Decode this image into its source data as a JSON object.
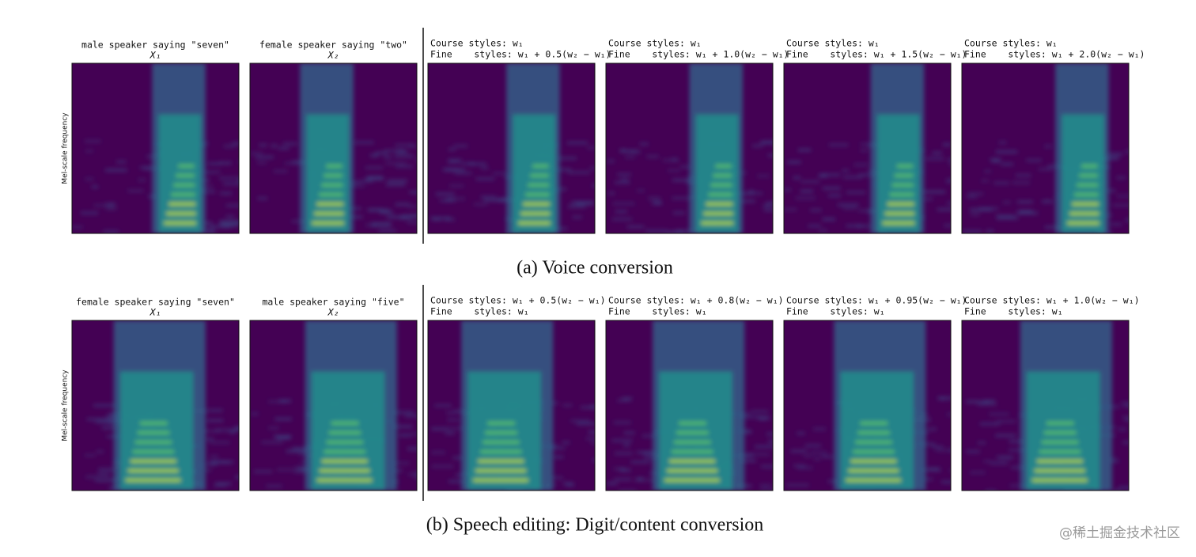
{
  "figure": {
    "rows": [
      {
        "ylabel": "Mel-scale frequency",
        "caption": "(a) Voice conversion",
        "panels": [
          {
            "title": [
              "male speaker saying \"seven\"",
              "X₁"
            ]
          },
          {
            "title": [
              "female speaker saying \"two\"",
              "X₂"
            ]
          },
          {
            "title": [
              "Course styles: w₁",
              "Fine    styles: w₁ + 0.5(w₂ − w₁)"
            ]
          },
          {
            "title": [
              "Course styles: w₁",
              "Fine    styles: w₁ + 1.0(w₂ − w₁)"
            ]
          },
          {
            "title": [
              "Course styles: w₁",
              "Fine    styles: w₁ + 1.5(w₂ − w₁)"
            ]
          },
          {
            "title": [
              "Course styles: w₁",
              "Fine    styles: w₁ + 2.0(w₂ − w₁)"
            ]
          }
        ]
      },
      {
        "ylabel": "Mel-scale frequency",
        "caption": "(b) Speech editing: Digit/content conversion",
        "panels": [
          {
            "title": [
              "female speaker saying \"seven\"",
              "X₁"
            ]
          },
          {
            "title": [
              "male speaker saying \"five\"",
              "X₂"
            ]
          },
          {
            "title": [
              "Course styles: w₁ + 0.5(w₂ − w₁)",
              "Fine    styles: w₁"
            ]
          },
          {
            "title": [
              "Course styles: w₁ + 0.8(w₂ − w₁)",
              "Fine    styles: w₁"
            ]
          },
          {
            "title": [
              "Course styles: w₁ + 0.95(w₂ − w₁)",
              "Fine    styles: w₁"
            ]
          },
          {
            "title": [
              "Course styles: w₁ + 1.0(w₂ − w₁)",
              "Fine    styles: w₁"
            ]
          }
        ]
      }
    ],
    "watermark": "@稀土掘金技术社区"
  }
}
